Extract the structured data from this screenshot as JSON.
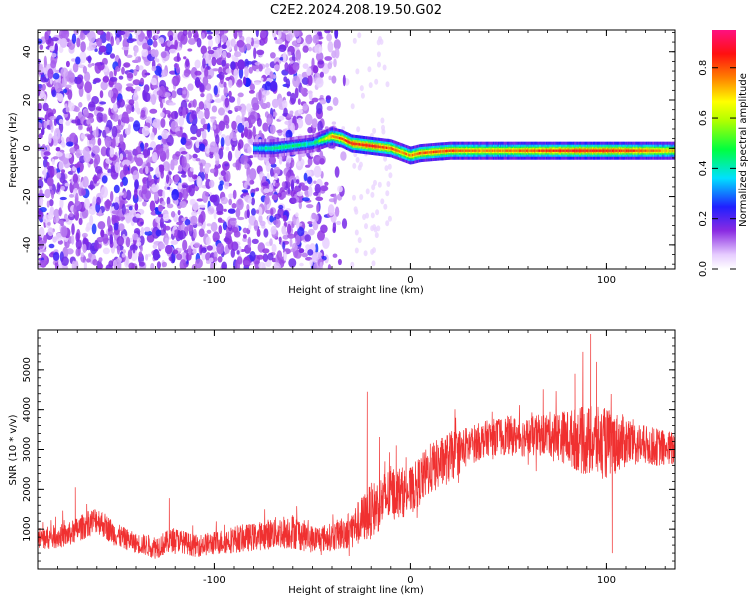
{
  "title": "C2E2.2024.208.19.50.G02",
  "colors": {
    "snr_line": "#f03030",
    "frame": "#000000"
  },
  "colorbar": {
    "label": "Normalized spectral amplitude",
    "ticks": [
      0.0,
      0.2,
      0.4,
      0.6,
      0.8
    ],
    "range": [
      0,
      0.95
    ],
    "colormap": "hsv-like: white, purple, blue, cyan, green, yellow, orange, red, magenta"
  },
  "chart_data": [
    {
      "type": "heatmap",
      "title": "",
      "xlabel": "Height of straight line (km)",
      "ylabel": "Frequency (Hz)",
      "xlim": [
        -190,
        135
      ],
      "ylim": [
        -50,
        49
      ],
      "x_ticks": [
        -100,
        0,
        100
      ],
      "y_ticks": [
        -40,
        -20,
        0,
        20,
        40
      ],
      "grid": false,
      "description_of_content": "broadband scattered low-amplitude (purple/blue) speckle for x below about -40 km; a narrow high-amplitude line near 0 Hz from about x = -80 km to the right edge, peaking (red) near x = -30 to 0 km and around x = 60 to 110 km",
      "ridge": {
        "x": [
          -80,
          -70,
          -60,
          -50,
          -40,
          -35,
          -30,
          -20,
          -10,
          0,
          5,
          20,
          40,
          60,
          80,
          100,
          120,
          135
        ],
        "frequency": [
          0,
          0,
          1,
          2,
          5,
          4,
          2,
          1,
          0,
          -3,
          -2,
          -1,
          -1,
          -1,
          -1,
          -1,
          -1,
          -1
        ],
        "amplitude": [
          0.35,
          0.45,
          0.45,
          0.4,
          0.75,
          0.8,
          0.85,
          0.85,
          0.8,
          0.75,
          0.8,
          0.8,
          0.75,
          0.8,
          0.85,
          0.85,
          0.8,
          0.7
        ]
      }
    },
    {
      "type": "line",
      "title": "",
      "xlabel": "Height of straight line (km)",
      "ylabel": "SNR (10 * v/v)",
      "xlim": [
        -190,
        135
      ],
      "ylim": [
        0,
        6000
      ],
      "x_ticks": [
        -100,
        0,
        100
      ],
      "y_ticks": [
        1000,
        2000,
        3000,
        4000,
        5000
      ],
      "grid": false,
      "envelope": {
        "x": [
          -190,
          -175,
          -160,
          -150,
          -140,
          -130,
          -120,
          -110,
          -100,
          -90,
          -80,
          -70,
          -60,
          -50,
          -40,
          -30,
          -20,
          -10,
          0,
          10,
          20,
          30,
          40,
          50,
          60,
          70,
          80,
          90,
          100,
          110,
          120,
          135
        ],
        "mean": [
          750,
          850,
          1250,
          850,
          650,
          550,
          750,
          580,
          650,
          750,
          800,
          900,
          950,
          750,
          800,
          1000,
          1450,
          1900,
          1950,
          2500,
          2800,
          3100,
          3300,
          3350,
          3300,
          3400,
          3300,
          3200,
          3150,
          3200,
          3100,
          3000
        ],
        "spread": [
          300,
          300,
          350,
          300,
          250,
          300,
          300,
          280,
          300,
          350,
          350,
          400,
          450,
          350,
          350,
          500,
          700,
          700,
          600,
          650,
          650,
          500,
          450,
          500,
          500,
          550,
          700,
          900,
          900,
          650,
          500,
          450
        ]
      },
      "spikes": [
        {
          "x": -171,
          "y": 2050
        },
        {
          "x": -123,
          "y": 1780
        },
        {
          "x": -22,
          "y": 4450
        },
        {
          "x": -13,
          "y": 2700
        },
        {
          "x": 88,
          "y": 5450
        },
        {
          "x": 92,
          "y": 5900
        },
        {
          "x": 95,
          "y": 5200
        },
        {
          "x": 103,
          "y": 400
        },
        {
          "x": 84,
          "y": 4900
        }
      ]
    }
  ]
}
